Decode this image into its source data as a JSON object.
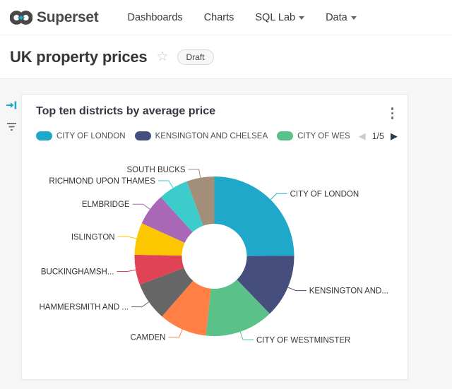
{
  "header": {
    "brand": "Superset",
    "nav": [
      {
        "label": "Dashboards",
        "has_caret": false
      },
      {
        "label": "Charts",
        "has_caret": false
      },
      {
        "label": "SQL Lab",
        "has_caret": true
      },
      {
        "label": "Data",
        "has_caret": true
      }
    ]
  },
  "dashboard": {
    "title": "UK property prices",
    "status_badge": "Draft"
  },
  "chart_card": {
    "title": "Top ten districts by average price",
    "legend_page": "1/5"
  },
  "colors": {
    "brand_teal": "#20A7C9",
    "logo_dark": "#484848",
    "page_bg": "#F6F6F6",
    "card_bg": "#FFFFFF",
    "pager_disabled": "#C9CDD1",
    "pager_enabled": "#2A3B4D"
  },
  "chart_data": {
    "type": "pie",
    "subtype": "donut",
    "title": "Top ten districts by average price",
    "legend_position": "top",
    "legend_page": "1/5",
    "legend_visible_items": [
      {
        "label": "CITY OF LONDON",
        "color": "#1FA8C9"
      },
      {
        "label": "KENSINGTON AND CHELSEA",
        "color": "#454E7C"
      },
      {
        "label": "CITY OF WES",
        "color": "#5AC189"
      }
    ],
    "categories": [
      "CITY OF LONDON",
      "KENSINGTON AND CHELSEA",
      "CITY OF WESTMINSTER",
      "CAMDEN",
      "HAMMERSMITH AND ...",
      "BUCKINGHAMSH...",
      "ISLINGTON",
      "ELMBRIDGE",
      "RICHMOND UPON THAMES",
      "SOUTH BUCKS"
    ],
    "slice_labels": [
      "CITY OF LONDON",
      "KENSINGTON AND...",
      "CITY OF WESTMINSTER",
      "CAMDEN",
      "HAMMERSMITH AND ...",
      "BUCKINGHAMSH...",
      "ISLINGTON",
      "ELMBRIDGE",
      "RICHMOND UPON THAMES",
      "SOUTH BUCKS"
    ],
    "values_pct_share": [
      24.9,
      12.9,
      13.9,
      9.7,
      7.8,
      6.1,
      6.5,
      6.5,
      6.1,
      5.6
    ],
    "colors": [
      "#1FA8C9",
      "#454E7C",
      "#5AC189",
      "#FF7F44",
      "#666666",
      "#E04355",
      "#FCC700",
      "#A868B7",
      "#3CCCCB",
      "#A38F79"
    ]
  }
}
